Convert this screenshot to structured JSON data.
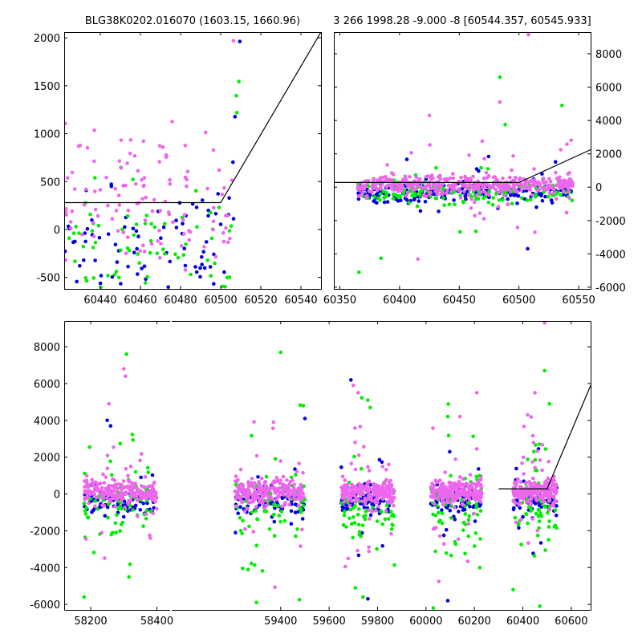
{
  "chart_data": [
    {
      "id": "zoom",
      "type": "scatter",
      "title": "BLG38K0202.016070 (1603.15, 1660.96)",
      "xlim": [
        60422,
        60550
      ],
      "ylim": [
        -620,
        2060
      ],
      "xticks": [
        60440,
        60460,
        60480,
        60500,
        60520,
        60540
      ],
      "yticks": [
        -500,
        0,
        500,
        1000,
        1500,
        2000
      ],
      "ytick_side": "left",
      "grid": false,
      "model_line": {
        "x": [
          60422,
          60500,
          60550
        ],
        "y": [
          280,
          280,
          2060
        ]
      },
      "series": [
        {
          "color": "#ee66ee",
          "cluster": {
            "x_min": 60422,
            "x_max": 60548,
            "mean": 300,
            "sd": 380,
            "n": 190,
            "trend": [
              [
                60505,
                0
              ],
              [
                60550,
                1300
              ]
            ]
          }
        },
        {
          "color": "#00ee00",
          "cluster": {
            "x_min": 60422,
            "x_max": 60548,
            "mean": -200,
            "sd": 320,
            "n": 110,
            "trend": [
              [
                60505,
                0
              ],
              [
                60550,
                400
              ]
            ]
          }
        },
        {
          "color": "#0000dd",
          "cluster": {
            "x_min": 60422,
            "x_max": 60548,
            "mean": -250,
            "sd": 300,
            "n": 130,
            "trend": [
              [
                60505,
                0
              ],
              [
                60550,
                500
              ]
            ]
          }
        }
      ]
    },
    {
      "id": "season",
      "type": "scatter",
      "title": "3 266 1998.28 -9.000 -8 [60544.357, 60545.933]",
      "xlim": [
        60345,
        60560
      ],
      "ylim": [
        -6100,
        9300
      ],
      "xticks": [
        60350,
        60400,
        60450,
        60500,
        60550
      ],
      "yticks": [
        -6000,
        -4000,
        -2000,
        0,
        2000,
        4000,
        6000,
        8000
      ],
      "ytick_side": "right",
      "grid": false,
      "model_line": {
        "x": [
          60345,
          60500,
          60560
        ],
        "y": [
          280,
          280,
          2250
        ]
      },
      "series": [
        {
          "color": "#ee66ee",
          "cluster": {
            "x_min": 60365,
            "x_max": 60545,
            "mean": 150,
            "sd": 300,
            "n": 420,
            "outlier_sd": 1800,
            "outlier_frac": 0.08
          }
        },
        {
          "color": "#00ee00",
          "cluster": {
            "x_min": 60365,
            "x_max": 60545,
            "mean": -350,
            "sd": 350,
            "n": 160,
            "outlier_sd": 1800,
            "outlier_frac": 0.12
          }
        },
        {
          "color": "#0000dd",
          "cluster": {
            "x_min": 60365,
            "x_max": 60545,
            "mean": -300,
            "sd": 300,
            "n": 220,
            "outlier_sd": 1200,
            "outlier_frac": 0.08
          }
        }
      ],
      "highlights": [
        {
          "color": "#ee66ee",
          "x": 60508,
          "y": 9150
        },
        {
          "color": "#ee66ee",
          "x": 60484,
          "y": 5100
        },
        {
          "color": "#00ee00",
          "x": 60484,
          "y": 6600
        },
        {
          "color": "#ee66ee",
          "x": 60425,
          "y": 4300
        },
        {
          "color": "#00ee00",
          "x": 60536,
          "y": 4900
        },
        {
          "color": "#00ee00",
          "x": 60366,
          "y": -5100
        },
        {
          "color": "#00ee00",
          "x": 60474,
          "y": -6100
        }
      ]
    },
    {
      "id": "full",
      "type": "scatter",
      "title": "",
      "xlim": [
        58120,
        60680
      ],
      "ylim": [
        -6300,
        9400
      ],
      "axis_break_x": 58440,
      "xticks": [
        58200,
        58400,
        59400,
        59600,
        59800,
        60000,
        60200,
        60400,
        60600
      ],
      "yticks": [
        -6000,
        -4000,
        -2000,
        0,
        2000,
        4000,
        6000,
        8000
      ],
      "ytick_side": "left",
      "grid": false,
      "display_segments": [
        {
          "data": [
            58120,
            58440
          ],
          "px": [
            80,
            212
          ]
        },
        {
          "data": [
            58950,
            60680
          ],
          "px": [
            214,
            736
          ]
        }
      ],
      "model_line": {
        "x": [
          60300,
          60500,
          60680
        ],
        "y": [
          280,
          280,
          5900
        ]
      },
      "seasons": [
        [
          58180,
          58400
        ],
        [
          59210,
          59500
        ],
        [
          59650,
          59870
        ],
        [
          60020,
          60230
        ],
        [
          60360,
          60540
        ]
      ],
      "series": [
        {
          "color": "#ee66ee",
          "cluster": {
            "mean": 100,
            "sd": 300,
            "n_per_season": 230,
            "outlier_sd": 2000,
            "outlier_frac": 0.12
          }
        },
        {
          "color": "#00ee00",
          "cluster": {
            "mean": -700,
            "sd": 800,
            "n_per_season": 70,
            "outlier_sd": 2300,
            "outlier_frac": 0.3
          }
        },
        {
          "color": "#0000dd",
          "cluster": {
            "mean": -350,
            "sd": 350,
            "n_per_season": 90,
            "outlier_sd": 1500,
            "outlier_frac": 0.12
          }
        }
      ],
      "highlights": [
        {
          "color": "#00ee00",
          "x": 58308,
          "y": 7600
        },
        {
          "color": "#ee66ee",
          "x": 58300,
          "y": 6800
        },
        {
          "color": "#ee66ee",
          "x": 58305,
          "y": 6400
        },
        {
          "color": "#ee66ee",
          "x": 58255,
          "y": 4900
        },
        {
          "color": "#0000dd",
          "x": 58250,
          "y": 4000
        },
        {
          "color": "#0000dd",
          "x": 58260,
          "y": 3700
        },
        {
          "color": "#00ee00",
          "x": 59400,
          "y": 7700
        },
        {
          "color": "#ee66ee",
          "x": 59370,
          "y": 3900
        },
        {
          "color": "#0000dd",
          "x": 59500,
          "y": 4100
        },
        {
          "color": "#0000dd",
          "x": 59690,
          "y": 6200
        },
        {
          "color": "#ee66ee",
          "x": 59700,
          "y": 5900
        },
        {
          "color": "#00ee00",
          "x": 59760,
          "y": 5100
        },
        {
          "color": "#00ee00",
          "x": 59770,
          "y": 4700
        },
        {
          "color": "#ee66ee",
          "x": 59720,
          "y": 5500
        },
        {
          "color": "#ee66ee",
          "x": 60210,
          "y": 5500
        },
        {
          "color": "#ee66ee",
          "x": 60140,
          "y": 4200
        },
        {
          "color": "#ee66ee",
          "x": 60450,
          "y": 5500
        },
        {
          "color": "#00ee00",
          "x": 60490,
          "y": 6700
        },
        {
          "color": "#ee66ee",
          "x": 60490,
          "y": 9300
        },
        {
          "color": "#00ee00",
          "x": 60510,
          "y": 4900
        },
        {
          "color": "#ee66ee",
          "x": 60420,
          "y": 4300
        },
        {
          "color": "#00ee00",
          "x": 58180,
          "y": -5600
        },
        {
          "color": "#00ee00",
          "x": 59740,
          "y": -5600
        },
        {
          "color": "#0000dd",
          "x": 59760,
          "y": -5700
        },
        {
          "color": "#00ee00",
          "x": 60030,
          "y": -6200
        },
        {
          "color": "#0000dd",
          "x": 60090,
          "y": -5800
        },
        {
          "color": "#00ee00",
          "x": 60360,
          "y": -5200
        },
        {
          "color": "#00ee00",
          "x": 60470,
          "y": -6100
        },
        {
          "color": "#00ee00",
          "x": 59300,
          "y": -5900
        }
      ]
    }
  ]
}
